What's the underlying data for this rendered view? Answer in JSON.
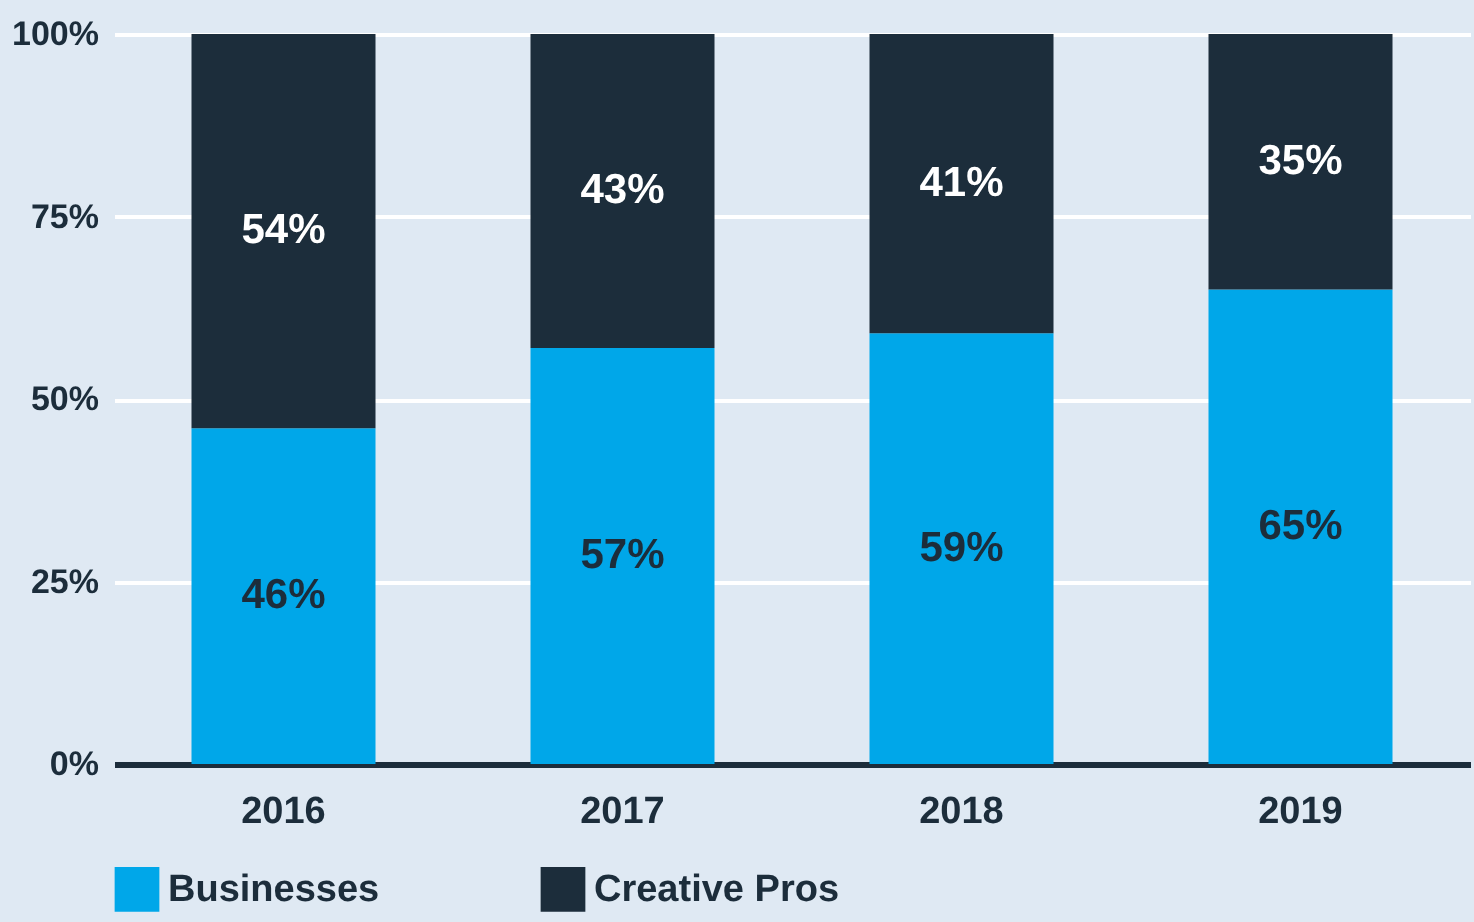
{
  "chart_data": {
    "type": "bar",
    "stacked": true,
    "categories": [
      "2016",
      "2017",
      "2018",
      "2019"
    ],
    "series": [
      {
        "name": "Businesses",
        "color": "#00a7e9",
        "values": [
          46,
          57,
          59,
          65
        ],
        "value_labels": [
          "46%",
          "57%",
          "59%",
          "65%"
        ]
      },
      {
        "name": "Creative Pros",
        "color": "#1c2d3b",
        "values": [
          54,
          43,
          41,
          35
        ],
        "value_labels": [
          "54%",
          "43%",
          "41%",
          "35%"
        ]
      }
    ],
    "ylim": [
      0,
      100
    ],
    "yticks": [
      {
        "value": 0,
        "label": "0%"
      },
      {
        "value": 25,
        "label": "25%"
      },
      {
        "value": 50,
        "label": "50%"
      },
      {
        "value": 75,
        "label": "75%"
      },
      {
        "value": 100,
        "label": "100%"
      }
    ],
    "grid": "y",
    "legend": "bottom"
  }
}
